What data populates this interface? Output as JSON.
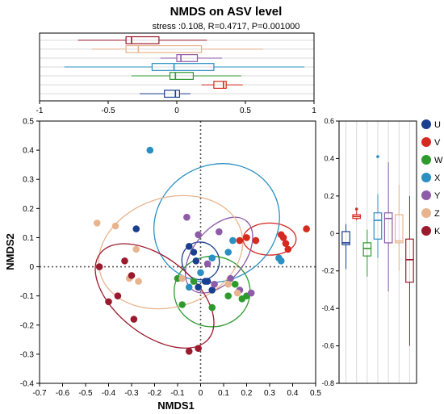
{
  "chart_data": {
    "type": "scatter",
    "title": "NMDS on ASV level",
    "subtitle": "stress :0.108, R=0.4717, P=0.001000",
    "xlabel": "NMDS1",
    "ylabel": "NMDS2",
    "xlim": [
      -0.7,
      0.5
    ],
    "ylim": [
      -0.4,
      0.5
    ],
    "xticks": [
      "-0.7",
      "-0.6",
      "-0.5",
      "-0.4",
      "-0.3",
      "-0.2",
      "-0.1",
      "0",
      "0.1",
      "0.2",
      "0.3",
      "0.4",
      "0.5"
    ],
    "yticks": [
      "0.5",
      "0.4",
      "0.3",
      "0.2",
      "0.1",
      "0",
      "-0.1",
      "-0.2",
      "-0.3",
      "-0.4"
    ],
    "reference_lines": {
      "x": 0,
      "y": 0,
      "style": "dotted"
    },
    "legend_position": "right",
    "series": [
      {
        "name": "U",
        "color": "#1a3f8f",
        "points": [
          [
            -0.28,
            0.13
          ],
          [
            -0.05,
            0.07
          ],
          [
            -0.03,
            0.05
          ],
          [
            -0.02,
            0.02
          ],
          [
            0.03,
            -0.05
          ],
          [
            -0.01,
            -0.07
          ],
          [
            0.05,
            -0.08
          ],
          [
            0.02,
            -0.05
          ]
        ],
        "ellipse": {
          "cx": 0.0,
          "cy": 0.02,
          "rx": 0.08,
          "ry": 0.03,
          "angle": -40
        },
        "box": {
          "min": -0.19,
          "q1": -0.06,
          "median": -0.05,
          "q3": 0.01,
          "max": 0.05
        }
      },
      {
        "name": "V",
        "color": "#d42a1f",
        "points": [
          [
            0.17,
            0.09
          ],
          [
            0.2,
            0.1
          ],
          [
            0.24,
            0.09
          ],
          [
            0.37,
            0.08
          ],
          [
            0.36,
            0.1
          ],
          [
            0.46,
            0.13
          ],
          [
            0.35,
            0.11
          ],
          [
            0.38,
            0.06
          ]
        ],
        "ellipse": {
          "cx": 0.3,
          "cy": 0.095,
          "rx": 0.115,
          "ry": 0.025,
          "angle": 0
        },
        "box": {
          "min": 0.07,
          "q1": 0.08,
          "median": 0.09,
          "q3": 0.1,
          "max": 0.12,
          "outliers": [
            0.13
          ]
        }
      },
      {
        "name": "W",
        "color": "#2e9a2e",
        "points": [
          [
            -0.03,
            -0.05
          ],
          [
            -0.1,
            -0.04
          ],
          [
            -0.08,
            -0.13
          ],
          [
            0.05,
            -0.14
          ],
          [
            0.15,
            -0.06
          ],
          [
            0.2,
            -0.1
          ],
          [
            0.18,
            -0.11
          ],
          [
            0.12,
            -0.1
          ]
        ],
        "ellipse": {
          "cx": 0.05,
          "cy": -0.085,
          "rx": 0.165,
          "ry": 0.055,
          "angle": 0
        },
        "box": {
          "min": -0.23,
          "q1": -0.12,
          "median": -0.08,
          "q3": -0.05,
          "max": 0.02
        }
      },
      {
        "name": "X",
        "color": "#2a8fc2",
        "points": [
          [
            -0.22,
            0.4
          ],
          [
            0.05,
            0.03
          ],
          [
            0.12,
            0.05
          ],
          [
            0.34,
            0.03
          ],
          [
            0.35,
            0.02
          ],
          [
            0.0,
            -0.02
          ],
          [
            -0.05,
            -0.07
          ],
          [
            0.14,
            0.09
          ]
        ],
        "ellipse": {
          "cx": 0.07,
          "cy": 0.15,
          "rx": 0.28,
          "ry": 0.09,
          "angle": -30
        },
        "box": {
          "min": -0.13,
          "q1": -0.03,
          "median": 0.07,
          "q3": 0.11,
          "max": 0.21,
          "outliers": [
            0.41
          ]
        }
      },
      {
        "name": "Y",
        "color": "#8e5ba8",
        "points": [
          [
            -0.06,
            0.17
          ],
          [
            -0.01,
            0.11
          ],
          [
            0.08,
            0.12
          ],
          [
            0.03,
            0.01
          ],
          [
            0.13,
            -0.04
          ],
          [
            0.17,
            -0.08
          ],
          [
            0.22,
            -0.09
          ],
          [
            0.06,
            -0.06
          ]
        ],
        "ellipse": {
          "cx": 0.08,
          "cy": 0.04,
          "rx": 0.19,
          "ry": 0.04,
          "angle": -52
        },
        "box": {
          "min": -0.31,
          "q1": -0.05,
          "median": 0.08,
          "q3": 0.11,
          "max": 0.38
        }
      },
      {
        "name": "Z",
        "color": "#e8b48e",
        "points": [
          [
            -0.45,
            0.15
          ],
          [
            -0.37,
            0.14
          ],
          [
            -0.28,
            0.06
          ],
          [
            -0.27,
            -0.05
          ],
          [
            -0.31,
            -0.04
          ],
          [
            0.12,
            -0.06
          ],
          [
            0.16,
            -0.09
          ],
          [
            -0.08,
            -0.04
          ]
        ],
        "ellipse": {
          "cx": -0.13,
          "cy": 0.05,
          "rx": 0.32,
          "ry": 0.085,
          "angle": -18
        },
        "box": {
          "min": -0.2,
          "q1": -0.05,
          "median": -0.04,
          "q3": 0.1,
          "max": 0.26
        }
      },
      {
        "name": "K",
        "color": "#9c1a2e",
        "points": [
          [
            -0.44,
            0.0
          ],
          [
            -0.36,
            -0.1
          ],
          [
            -0.33,
            0.02
          ],
          [
            -0.29,
            -0.18
          ],
          [
            -0.05,
            -0.29
          ],
          [
            -0.01,
            -0.28
          ],
          [
            -0.3,
            -0.03
          ],
          [
            -0.4,
            -0.12
          ]
        ],
        "ellipse": {
          "cx": -0.2,
          "cy": -0.1,
          "rx": 0.3,
          "ry": 0.06,
          "angle": 38
        },
        "box": {
          "min": -0.6,
          "q1": -0.26,
          "median": -0.14,
          "q3": -0.03,
          "max": 0.2
        }
      }
    ],
    "top_panel": {
      "xlim": [
        -1,
        1
      ],
      "xticks": [
        "-1",
        "-0.5",
        "0",
        "0.5",
        "1"
      ],
      "orientation": "horizontal",
      "boxes": [
        {
          "name": "K",
          "min": -0.72,
          "q1": -0.37,
          "median": -0.33,
          "q3": -0.13,
          "max": 0.22
        },
        {
          "name": "Z",
          "min": -0.62,
          "q1": -0.37,
          "median": -0.28,
          "q3": 0.18,
          "max": 0.63
        },
        {
          "name": "Y",
          "min": -0.12,
          "q1": 0.0,
          "median": 0.03,
          "q3": 0.15,
          "max": 0.33
        },
        {
          "name": "X",
          "min": -0.82,
          "q1": -0.18,
          "median": -0.02,
          "q3": 0.27,
          "max": 0.93
        },
        {
          "name": "W",
          "min": -0.33,
          "q1": -0.05,
          "median": -0.01,
          "q3": 0.12,
          "max": 0.47
        },
        {
          "name": "V",
          "min": 0.18,
          "q1": 0.27,
          "median": 0.34,
          "q3": 0.36,
          "max": 0.48
        },
        {
          "name": "U",
          "min": -0.27,
          "q1": -0.09,
          "median": -0.01,
          "q3": 0.02,
          "max": 0.1
        }
      ]
    },
    "right_panel": {
      "ylim": [
        -0.8,
        0.6
      ],
      "yticks": [
        "0.6",
        "0.4",
        "0.2",
        "0",
        "-0.2",
        "-0.4",
        "-0.6",
        "-0.8"
      ],
      "orientation": "vertical"
    }
  }
}
